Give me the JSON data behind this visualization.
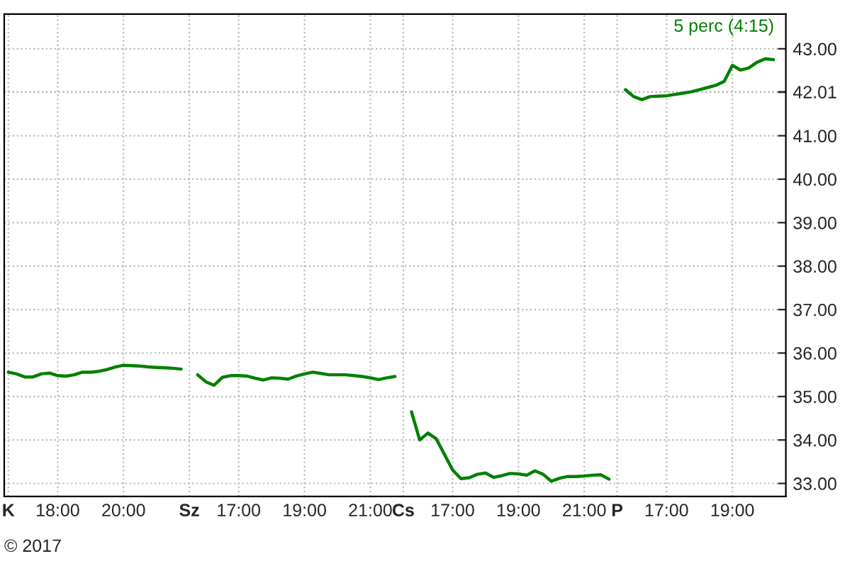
{
  "chart_data": {
    "type": "line",
    "subtitle": "5 perc (4:15)",
    "annotations": [
      "© 2017"
    ],
    "categories": [
      "K",
      null,
      null,
      null,
      null,
      null,
      "18:00",
      null,
      null,
      null,
      null,
      null,
      null,
      null,
      "20:00",
      null,
      null,
      null,
      null,
      null,
      null,
      null,
      "Sz",
      null,
      null,
      null,
      null,
      null,
      "17:00",
      null,
      null,
      null,
      null,
      null,
      null,
      null,
      "19:00",
      null,
      null,
      null,
      null,
      null,
      null,
      null,
      "21:00",
      null,
      null,
      null,
      "Cs",
      null,
      null,
      null,
      null,
      null,
      "17:00",
      null,
      null,
      null,
      null,
      null,
      null,
      null,
      "19:00",
      null,
      null,
      null,
      null,
      null,
      null,
      null,
      "21:00",
      null,
      null,
      null,
      "P",
      null,
      null,
      null,
      null,
      null,
      "17:00",
      null,
      null,
      null,
      null,
      null,
      null,
      null,
      "19:00",
      null,
      null,
      null,
      null,
      null
    ],
    "series": [
      {
        "color": "#008000",
        "values": [
          35.56,
          35.52,
          35.45,
          35.45,
          35.52,
          35.54,
          35.48,
          35.47,
          35.5,
          35.56,
          35.56,
          35.58,
          35.62,
          35.68,
          35.72,
          35.71,
          35.7,
          35.68,
          35.67,
          35.66,
          35.65,
          35.63,
          null,
          35.5,
          35.34,
          35.26,
          35.44,
          35.48,
          35.48,
          35.47,
          35.42,
          35.38,
          35.43,
          35.42,
          35.4,
          35.47,
          35.52,
          35.56,
          35.53,
          35.5,
          35.5,
          35.5,
          35.48,
          35.46,
          35.43,
          35.39,
          35.43,
          35.46,
          null,
          34.65,
          34.0,
          34.16,
          34.03,
          33.67,
          33.31,
          33.11,
          33.13,
          33.21,
          33.24,
          33.14,
          33.18,
          33.23,
          33.22,
          33.19,
          33.29,
          33.21,
          33.05,
          33.12,
          33.16,
          33.16,
          33.17,
          33.19,
          33.2,
          33.1,
          null,
          42.06,
          41.9,
          41.83,
          41.9,
          41.91,
          41.92,
          41.95,
          41.98,
          42.01,
          42.06,
          42.11,
          42.16,
          42.25,
          42.62,
          42.51,
          42.56,
          42.69,
          42.77,
          42.75
        ]
      }
    ],
    "ylim": [
      32.7,
      43.8
    ],
    "yticks": [
      {
        "value": 33,
        "label": "33.00"
      },
      {
        "value": 34,
        "label": "34.00"
      },
      {
        "value": 35,
        "label": "35.00"
      },
      {
        "value": 36,
        "label": "36.00"
      },
      {
        "value": 37,
        "label": "37.00"
      },
      {
        "value": 38,
        "label": "38.00"
      },
      {
        "value": 39,
        "label": "39.00"
      },
      {
        "value": 40,
        "label": "40.00"
      },
      {
        "value": 41,
        "label": "41.00"
      },
      {
        "value": 42,
        "label": null
      },
      {
        "value": 42.01,
        "label": "42.01"
      },
      {
        "value": 43,
        "label": "43.00"
      }
    ],
    "grid": true,
    "legend": false,
    "marker": "none",
    "line_style": "solid"
  }
}
